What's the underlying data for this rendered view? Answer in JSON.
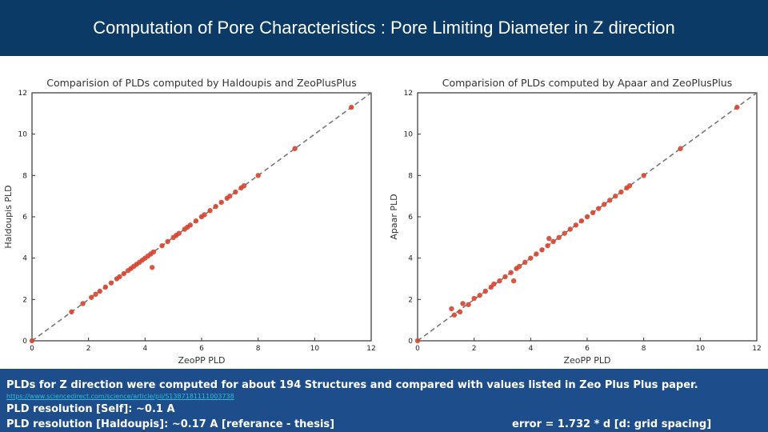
{
  "header": {
    "title": "Computation of Pore Characteristics : Pore Limiting Diameter in Z direction"
  },
  "chart_data": [
    {
      "type": "scatter",
      "title": "Comparision of PLDs computed by Haldoupis and ZeoPlusPlus",
      "xlabel": "ZeoPP PLD",
      "ylabel": "Haldoupis PLD",
      "xlim": [
        0,
        12
      ],
      "ylim": [
        0,
        12
      ],
      "xticks": [
        "0",
        "2",
        "4",
        "6",
        "8",
        "10",
        "12"
      ],
      "yticks": [
        "0",
        "2",
        "4",
        "6",
        "8",
        "10",
        "12"
      ],
      "reference_line": {
        "style": "dashed",
        "x": [
          0,
          12
        ],
        "y": [
          0,
          12
        ]
      },
      "marker_color": "#d64531",
      "x": [
        0.0,
        1.4,
        1.8,
        2.1,
        2.25,
        2.4,
        2.6,
        2.8,
        3.0,
        3.1,
        3.25,
        3.4,
        3.5,
        3.6,
        3.7,
        3.8,
        3.9,
        4.0,
        4.1,
        4.2,
        4.3,
        4.25,
        4.6,
        4.8,
        5.0,
        5.1,
        5.2,
        5.4,
        5.5,
        5.6,
        5.8,
        6.0,
        6.1,
        6.3,
        6.5,
        6.7,
        6.9,
        7.0,
        7.2,
        7.4,
        7.5,
        8.0,
        9.3,
        11.3
      ],
      "y": [
        0.0,
        1.4,
        1.8,
        2.1,
        2.25,
        2.4,
        2.6,
        2.8,
        3.0,
        3.1,
        3.25,
        3.4,
        3.5,
        3.6,
        3.7,
        3.8,
        3.9,
        4.0,
        4.1,
        4.2,
        4.3,
        3.55,
        4.6,
        4.8,
        5.0,
        5.1,
        5.2,
        5.4,
        5.5,
        5.6,
        5.8,
        6.0,
        6.1,
        6.3,
        6.5,
        6.7,
        6.9,
        7.0,
        7.2,
        7.4,
        7.5,
        8.0,
        9.3,
        11.3
      ]
    },
    {
      "type": "scatter",
      "title": "Comparision of PLDs computed by Apaar and ZeoPlusPlus",
      "xlabel": "ZeoPP PLD",
      "ylabel": "Apaar PLD",
      "xlim": [
        0,
        12
      ],
      "ylim": [
        0,
        12
      ],
      "xticks": [
        "0",
        "2",
        "4",
        "6",
        "8",
        "10",
        "12"
      ],
      "yticks": [
        "0",
        "2",
        "4",
        "6",
        "8",
        "10",
        "12"
      ],
      "reference_line": {
        "style": "dashed",
        "x": [
          0,
          12
        ],
        "y": [
          0,
          12
        ]
      },
      "marker_color": "#d64531",
      "x": [
        0.0,
        1.2,
        1.3,
        1.5,
        1.6,
        1.8,
        2.0,
        2.2,
        2.4,
        2.6,
        2.7,
        2.9,
        3.1,
        3.3,
        3.4,
        3.5,
        3.6,
        3.8,
        4.0,
        4.2,
        4.4,
        4.6,
        4.65,
        4.8,
        5.0,
        5.2,
        5.4,
        5.6,
        5.8,
        6.0,
        6.2,
        6.4,
        6.6,
        6.8,
        7.0,
        7.2,
        7.4,
        7.5,
        8.0,
        9.3,
        11.3
      ],
      "y": [
        0.0,
        1.55,
        1.25,
        1.4,
        1.8,
        1.75,
        2.05,
        2.2,
        2.4,
        2.6,
        2.75,
        2.9,
        3.1,
        3.3,
        2.9,
        3.5,
        3.6,
        3.8,
        4.0,
        4.2,
        4.4,
        4.6,
        4.95,
        4.8,
        5.0,
        5.2,
        5.4,
        5.6,
        5.8,
        6.0,
        6.2,
        6.4,
        6.6,
        6.8,
        7.0,
        7.2,
        7.4,
        7.5,
        8.0,
        9.3,
        11.3
      ]
    }
  ],
  "footer": {
    "line1": "PLDs for Z direction were computed for about 194 Structures and compared with values listed in Zeo Plus Plus paper.",
    "link": "https://www.sciencedirect.com/science/article/pii/S1387181111003738",
    "line3": "PLD resolution [Self]: ~0.1 A",
    "line4": "PLD resolution [Haldoupis]: ~0.17 A [referance - thesis]",
    "error_note": "error = 1.732 * d [d: grid spacing]"
  }
}
